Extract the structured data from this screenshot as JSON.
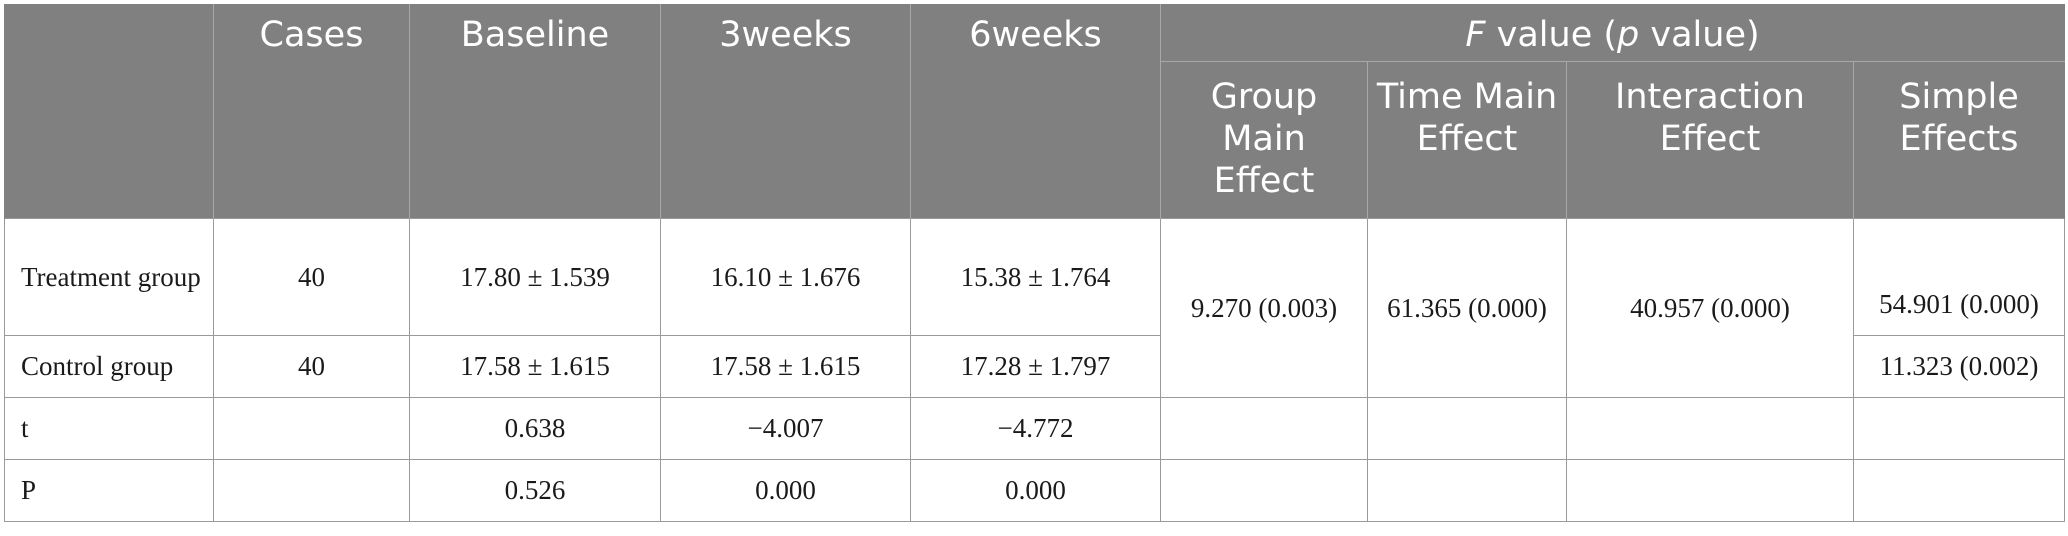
{
  "table": {
    "header": {
      "blank": "",
      "cases": "Cases",
      "baseline": "Baseline",
      "weeks3": "3weeks",
      "weeks6": "6weeks",
      "fvalue": {
        "f": "F",
        "value1": " value (",
        "p": "p",
        "value2": " value)"
      },
      "sub": {
        "group_main_effect": "Group Main Effect",
        "time_main_effect": "Time Main Effect",
        "interaction_effect": "Interaction Effect",
        "simple_effects": "Simple Effects"
      }
    },
    "rows": {
      "treatment": {
        "label": "Treatment group",
        "cases": "40",
        "baseline": "17.80 ± 1.539",
        "weeks3": "16.10 ± 1.676",
        "weeks6": "15.38 ± 1.764",
        "simple_effects": "54.901 (0.000)"
      },
      "control": {
        "label": "Control group",
        "cases": "40",
        "baseline": "17.58 ± 1.615",
        "weeks3": "17.58 ± 1.615",
        "weeks6": "17.28 ± 1.797",
        "simple_effects": "11.323 (0.002)"
      },
      "t": {
        "label": "t",
        "baseline": "0.638",
        "weeks3": "−4.007",
        "weeks6": "−4.772"
      },
      "p": {
        "label": "P",
        "baseline": "0.526",
        "weeks3": "0.000",
        "weeks6": "0.000"
      }
    },
    "merged": {
      "group_main_effect": "9.270 (0.003)",
      "time_main_effect": "61.365 (0.000)",
      "interaction_effect": "40.957 (0.000)"
    }
  }
}
